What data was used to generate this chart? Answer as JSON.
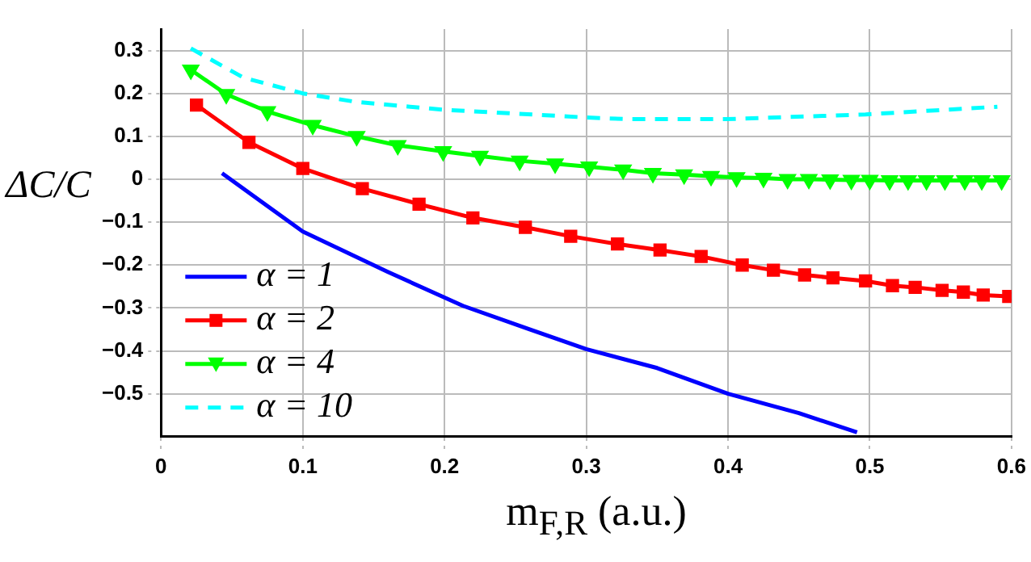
{
  "chart_data": {
    "type": "line",
    "xlabel": "m$_{F,R}$ (a.u.)",
    "ylabel": "ΔC/C",
    "xlim": [
      0,
      0.6
    ],
    "xticks": [
      0,
      0.1,
      0.2,
      0.3,
      0.4,
      0.5,
      0.6
    ],
    "ylim": [
      -0.6,
      0.35
    ],
    "yticks": [
      -0.5,
      -0.4,
      -0.3,
      -0.2,
      -0.1,
      0,
      0.1,
      0.2,
      0.3
    ],
    "grid": true,
    "legend": "bottom left",
    "series": [
      {
        "name": "α = 1",
        "color": "#0000ff",
        "marker": "none",
        "line_style": "solid",
        "x": [
          0.043,
          0.1,
          0.16,
          0.213,
          0.26,
          0.3,
          0.35,
          0.4,
          0.45,
          0.491
        ],
        "values": [
          0.014,
          -0.122,
          -0.216,
          -0.295,
          -0.35,
          -0.396,
          -0.44,
          -0.5,
          -0.545,
          -0.59
        ]
      },
      {
        "name": "α = 2",
        "color": "#ff0000",
        "marker": "square",
        "line_style": "solid",
        "x": [
          0.025,
          0.062,
          0.1,
          0.142,
          0.182,
          0.22,
          0.257,
          0.289,
          0.322,
          0.352,
          0.381,
          0.41,
          0.432,
          0.454,
          0.474,
          0.497,
          0.516,
          0.532,
          0.551,
          0.566,
          0.58,
          0.598
        ],
        "values": [
          0.173,
          0.086,
          0.025,
          -0.022,
          -0.058,
          -0.09,
          -0.112,
          -0.133,
          -0.151,
          -0.165,
          -0.18,
          -0.2,
          -0.212,
          -0.223,
          -0.23,
          -0.237,
          -0.248,
          -0.252,
          -0.259,
          -0.263,
          -0.27,
          -0.273
        ]
      },
      {
        "name": "α = 4",
        "color": "#00ff00",
        "marker": "triangle",
        "line_style": "solid",
        "x": [
          0.021,
          0.046,
          0.075,
          0.107,
          0.138,
          0.167,
          0.199,
          0.225,
          0.253,
          0.278,
          0.302,
          0.326,
          0.347,
          0.369,
          0.388,
          0.406,
          0.425,
          0.442,
          0.457,
          0.472,
          0.487,
          0.5,
          0.514,
          0.527,
          0.54,
          0.553,
          0.567,
          0.579,
          0.593
        ],
        "values": [
          0.255,
          0.198,
          0.158,
          0.126,
          0.1,
          0.079,
          0.065,
          0.054,
          0.043,
          0.036,
          0.029,
          0.022,
          0.014,
          0.011,
          0.007,
          0.004,
          0.003,
          0,
          0,
          -0.001,
          -0.002,
          -0.002,
          -0.003,
          -0.003,
          -0.003,
          -0.003,
          -0.003,
          -0.003,
          -0.003
        ]
      },
      {
        "name": "α = 10",
        "color": "#00ffff",
        "marker": "none",
        "line_style": "dashed",
        "x": [
          0.021,
          0.058,
          0.1,
          0.138,
          0.199,
          0.3,
          0.33,
          0.398,
          0.497,
          0.59
        ],
        "values": [
          0.305,
          0.237,
          0.2,
          0.18,
          0.162,
          0.144,
          0.14,
          0.14,
          0.151,
          0.169
        ]
      }
    ]
  }
}
